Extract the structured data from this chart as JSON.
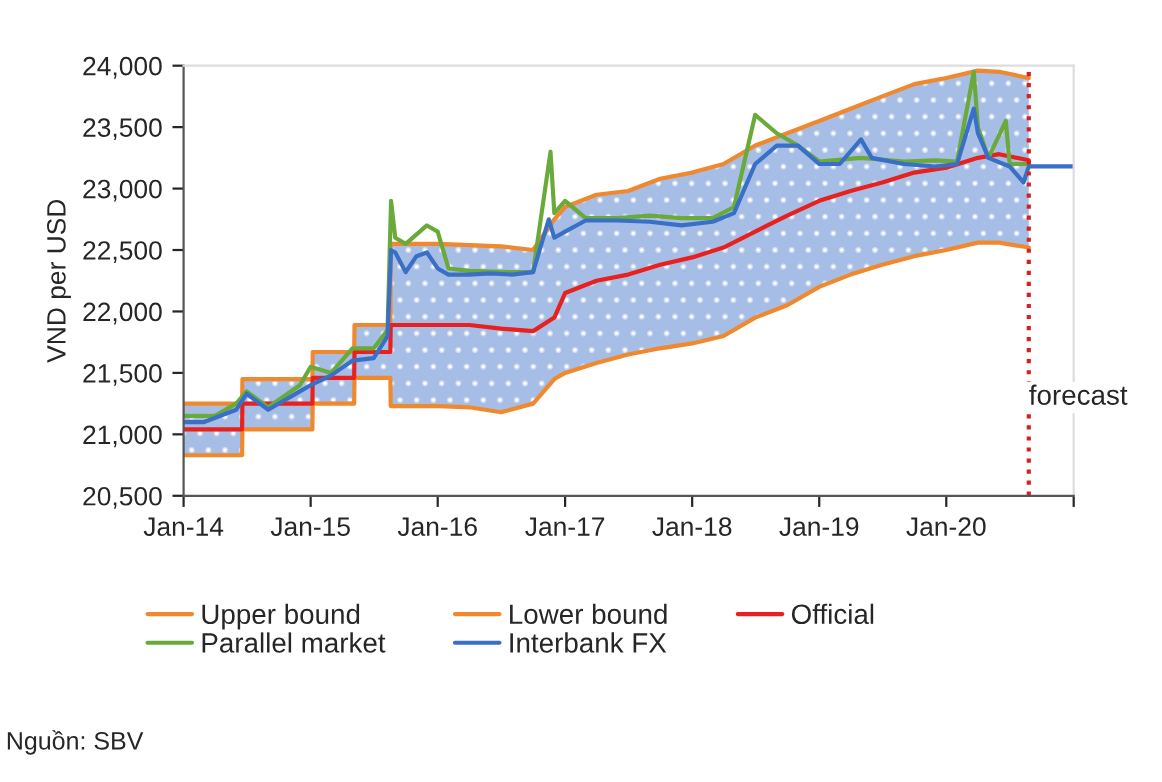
{
  "chart_data": {
    "type": "line",
    "ylabel": "VND per USD",
    "xlim": [
      "2014-01-01",
      "2021-01-01"
    ],
    "xticks": [
      {
        "value": "2014-01-01",
        "label": "Jan-14"
      },
      {
        "value": "2015-01-01",
        "label": "Jan-15"
      },
      {
        "value": "2016-01-01",
        "label": "Jan-16"
      },
      {
        "value": "2017-01-01",
        "label": "Jan-17"
      },
      {
        "value": "2018-01-01",
        "label": "Jan-18"
      },
      {
        "value": "2019-01-01",
        "label": "Jan-19"
      },
      {
        "value": "2020-01-01",
        "label": "Jan-20"
      },
      {
        "value": "2021-01-01",
        "label": null
      }
    ],
    "ylim": [
      20500,
      24000
    ],
    "yticks": [
      {
        "value": 20500,
        "label": "20,500"
      },
      {
        "value": 21000,
        "label": "21,000"
      },
      {
        "value": 21500,
        "label": "21,500"
      },
      {
        "value": 22000,
        "label": "22,000"
      },
      {
        "value": 22500,
        "label": "22,500"
      },
      {
        "value": 23000,
        "label": "23,000"
      },
      {
        "value": 23500,
        "label": "23,500"
      },
      {
        "value": 24000,
        "label": "24,000"
      }
    ],
    "grid": false,
    "legend": "bottom",
    "series": [
      {
        "name": "Upper bound",
        "color": "#f0892e",
        "x": [
          "2014-01-01",
          "2014-06-18",
          "2014-06-19",
          "2015-01-06",
          "2015-01-07",
          "2015-05-06",
          "2015-05-07",
          "2015-08-18",
          "2015-08-19",
          "2016-01-04",
          "2016-04-01",
          "2016-07-01",
          "2016-10-01",
          "2016-12-01",
          "2017-01-01",
          "2017-04-01",
          "2017-07-01",
          "2017-10-01",
          "2018-01-01",
          "2018-04-01",
          "2018-07-01",
          "2018-10-01",
          "2019-01-01",
          "2019-04-01",
          "2019-07-01",
          "2019-10-01",
          "2020-01-01",
          "2020-04-01",
          "2020-06-01",
          "2020-08-25"
        ],
        "values": [
          21250,
          21250,
          21450,
          21450,
          21670,
          21670,
          21890,
          21890,
          22550,
          22550,
          22540,
          22530,
          22500,
          22750,
          22850,
          22950,
          22980,
          23080,
          23130,
          23200,
          23350,
          23450,
          23550,
          23650,
          23750,
          23850,
          23900,
          23960,
          23950,
          23900
        ]
      },
      {
        "name": "Lower bound",
        "color": "#f0892e",
        "x": [
          "2014-01-01",
          "2014-06-18",
          "2014-06-19",
          "2015-01-06",
          "2015-01-07",
          "2015-05-06",
          "2015-05-07",
          "2015-08-18",
          "2015-08-19",
          "2016-01-04",
          "2016-04-01",
          "2016-07-01",
          "2016-10-01",
          "2016-12-01",
          "2017-01-01",
          "2017-04-01",
          "2017-07-01",
          "2017-10-01",
          "2018-01-01",
          "2018-04-01",
          "2018-07-01",
          "2018-10-01",
          "2019-01-01",
          "2019-04-01",
          "2019-07-01",
          "2019-10-01",
          "2020-01-01",
          "2020-04-01",
          "2020-06-01",
          "2020-08-25"
        ],
        "values": [
          20830,
          20830,
          21040,
          21040,
          21250,
          21250,
          21460,
          21460,
          21230,
          21230,
          21220,
          21180,
          21250,
          21450,
          21500,
          21580,
          21650,
          21700,
          21740,
          21800,
          21950,
          22050,
          22200,
          22300,
          22380,
          22450,
          22500,
          22560,
          22560,
          22520
        ]
      },
      {
        "name": "Official",
        "color": "#e8201e",
        "x": [
          "2014-01-01",
          "2014-06-18",
          "2014-06-19",
          "2015-01-06",
          "2015-01-07",
          "2015-05-06",
          "2015-05-07",
          "2015-08-18",
          "2015-08-19",
          "2016-01-04",
          "2016-04-01",
          "2016-07-01",
          "2016-10-01",
          "2016-12-01",
          "2017-01-01",
          "2017-04-01",
          "2017-07-01",
          "2017-10-01",
          "2018-01-01",
          "2018-04-01",
          "2018-07-01",
          "2018-10-01",
          "2019-01-01",
          "2019-04-01",
          "2019-07-01",
          "2019-10-01",
          "2020-01-01",
          "2020-04-01",
          "2020-06-01",
          "2020-08-25"
        ],
        "values": [
          21040,
          21040,
          21250,
          21250,
          21460,
          21460,
          21670,
          21670,
          21890,
          21890,
          21890,
          21860,
          21840,
          21950,
          22150,
          22250,
          22300,
          22380,
          22440,
          22520,
          22650,
          22780,
          22900,
          22980,
          23050,
          23130,
          23170,
          23250,
          23280,
          23230
        ],
        "lower": [
          20830,
          20830,
          21040,
          21040,
          21250,
          21250,
          21460,
          21460,
          21230,
          21230,
          21220,
          21180,
          21250,
          21450,
          21500,
          21580,
          21650,
          21700,
          21740,
          21800,
          21950,
          22050,
          22200,
          22300,
          22380,
          22450,
          22500,
          22560,
          22560,
          22520
        ],
        "upper": [
          21250,
          21250,
          21450,
          21450,
          21670,
          21670,
          21890,
          21890,
          22550,
          22550,
          22540,
          22530,
          22500,
          22750,
          22850,
          22950,
          22980,
          23080,
          23130,
          23200,
          23350,
          23450,
          23550,
          23650,
          23750,
          23850,
          23900,
          23960,
          23950,
          23900
        ]
      },
      {
        "name": "Parallel market",
        "color": "#6aaa3a",
        "x": [
          "2014-01-01",
          "2014-04-01",
          "2014-06-01",
          "2014-07-01",
          "2014-09-01",
          "2014-12-01",
          "2015-01-01",
          "2015-03-01",
          "2015-05-01",
          "2015-07-01",
          "2015-08-10",
          "2015-08-20",
          "2015-09-01",
          "2015-10-01",
          "2015-12-01",
          "2016-01-01",
          "2016-02-01",
          "2016-04-01",
          "2016-08-01",
          "2016-10-01",
          "2016-11-20",
          "2016-12-01",
          "2017-01-01",
          "2017-03-01",
          "2017-06-01",
          "2017-09-01",
          "2017-12-01",
          "2018-03-01",
          "2018-05-01",
          "2018-07-01",
          "2018-09-01",
          "2018-11-01",
          "2019-01-01",
          "2019-05-01",
          "2019-09-01",
          "2019-12-01",
          "2020-02-01",
          "2020-03-20",
          "2020-04-01",
          "2020-05-01",
          "2020-06-20",
          "2020-07-01",
          "2020-08-25"
        ],
        "values": [
          21150,
          21150,
          21250,
          21350,
          21220,
          21400,
          21550,
          21500,
          21700,
          21700,
          21850,
          22900,
          22600,
          22550,
          22700,
          22650,
          22350,
          22330,
          22320,
          22320,
          23300,
          22800,
          22900,
          22760,
          22760,
          22780,
          22760,
          22760,
          22850,
          23600,
          23450,
          23350,
          23220,
          23250,
          23220,
          23230,
          23220,
          23950,
          23500,
          23250,
          23550,
          23200,
          23200
        ]
      },
      {
        "name": "Interbank FX",
        "color": "#3a6fc8",
        "x": [
          "2014-01-01",
          "2014-03-01",
          "2014-06-01",
          "2014-07-01",
          "2014-09-01",
          "2014-12-01",
          "2015-01-01",
          "2015-03-01",
          "2015-05-01",
          "2015-07-01",
          "2015-08-10",
          "2015-08-20",
          "2015-09-01",
          "2015-10-01",
          "2015-11-01",
          "2015-12-01",
          "2016-01-01",
          "2016-02-01",
          "2016-04-01",
          "2016-06-01",
          "2016-08-01",
          "2016-10-01",
          "2016-11-15",
          "2016-12-01",
          "2017-01-01",
          "2017-03-01",
          "2017-06-01",
          "2017-09-01",
          "2017-12-01",
          "2018-03-01",
          "2018-05-01",
          "2018-07-01",
          "2018-09-01",
          "2018-11-01",
          "2019-01-01",
          "2019-03-01",
          "2019-05-01",
          "2019-06-01",
          "2019-09-01",
          "2019-12-01",
          "2020-02-01",
          "2020-03-20",
          "2020-04-01",
          "2020-05-01",
          "2020-07-01",
          "2020-08-10",
          "2020-08-25",
          "2021-01-01"
        ],
        "values": [
          21100,
          21100,
          21200,
          21330,
          21200,
          21350,
          21400,
          21480,
          21600,
          21620,
          21800,
          22500,
          22480,
          22320,
          22450,
          22480,
          22350,
          22300,
          22300,
          22310,
          22300,
          22320,
          22750,
          22600,
          22650,
          22740,
          22740,
          22730,
          22700,
          22730,
          22800,
          23200,
          23350,
          23350,
          23200,
          23200,
          23400,
          23250,
          23200,
          23180,
          23200,
          23650,
          23450,
          23250,
          23180,
          23050,
          23180,
          23180
        ]
      }
    ],
    "ref_lines": [
      {
        "axis": "x",
        "value": "2020-08-25",
        "label": "forecast",
        "color": "#d42020",
        "line_style": "dotted"
      }
    ],
    "annotations": [
      "Nguồn: SBV"
    ]
  }
}
